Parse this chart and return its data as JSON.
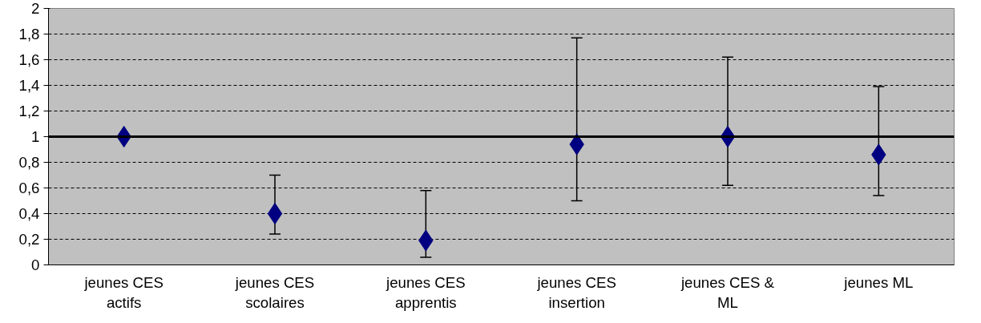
{
  "chart_data": {
    "type": "scatter",
    "categories": [
      "jeunes CES actifs",
      "jeunes CES scolaires",
      "jeunes CES apprentis",
      "jeunes CES insertion",
      "jeunes CES & ML",
      "jeunes ML"
    ],
    "series": [
      {
        "color": "#000080",
        "values": [
          1.0,
          0.4,
          0.19,
          0.94,
          1.0,
          0.86
        ],
        "errors": [
          null,
          [
            0.24,
            0.7
          ],
          [
            0.06,
            0.58
          ],
          [
            0.5,
            1.77
          ],
          [
            0.62,
            1.62
          ],
          [
            0.54,
            1.39
          ]
        ]
      }
    ],
    "ylim": [
      0,
      2
    ],
    "yticks": [
      0,
      {
        "value": 0.2,
        "label": "0,2"
      },
      {
        "value": 0.4,
        "label": "0,4"
      },
      {
        "value": 0.6,
        "label": "0,6"
      },
      {
        "value": 0.8,
        "label": "0,8"
      },
      1,
      {
        "value": 1.2,
        "label": "1,2"
      },
      {
        "value": 1.4,
        "label": "1,4"
      },
      {
        "value": 1.6,
        "label": "1,6"
      },
      {
        "value": 1.8,
        "label": "1,8"
      },
      2
    ],
    "ref_lines": [
      {
        "axis": "y",
        "value": 1,
        "color": "#000000"
      }
    ],
    "grid": "y",
    "marker": "diamond"
  }
}
